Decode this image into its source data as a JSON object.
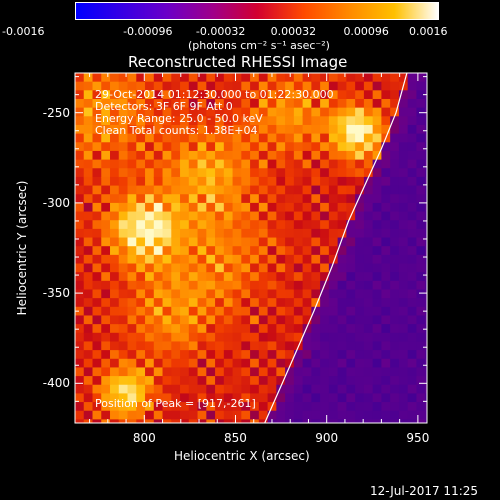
{
  "chart_data": {
    "type": "heatmap",
    "title": "Reconstructed RHESSI Image",
    "xlabel": "Heliocentric X (arcsec)",
    "ylabel": "Heliocentric Y (arcsec)",
    "xlim": [
      762,
      955
    ],
    "ylim": [
      -422,
      -228
    ],
    "xticks": [
      800,
      850,
      900,
      950
    ],
    "yticks": [
      -250,
      -300,
      -350,
      -400
    ],
    "x_tick_labels": [
      "800",
      "850",
      "900",
      "950"
    ],
    "y_tick_labels": [
      "-250",
      "-300",
      "-350",
      "-400"
    ],
    "colorbar": {
      "range": [
        -0.0016,
        0.0016
      ],
      "ticks": [
        -0.0016,
        -0.00096,
        -0.00032,
        0.00032,
        0.00096,
        0.0016
      ],
      "tick_labels": [
        "-0.0016",
        "-0.00096",
        "-0.00032",
        "0.00032",
        "0.00096",
        "0.0016"
      ],
      "label": "(photons cm⁻² s⁻¹ asec⁻²)",
      "colors": [
        "#0000ff",
        "#6a00c8",
        "#c0003a",
        "#ff5000",
        "#ffb000",
        "#ffffff"
      ]
    },
    "annotations": [
      "29-Oct-2014 01:12:30.000 to 01:22:30.000",
      "Detectors: 3F 6F 9F  Att 0",
      "Energy Range: 25.0 - 50.0 keV",
      "Clean    Total counts: 1.38E+04",
      "Position of Peak = [917,-261]"
    ],
    "peak": {
      "x": 917,
      "y": -261
    },
    "limb_curve": {
      "x": [
        866,
        880,
        893,
        903,
        912,
        921,
        930,
        938,
        944
      ],
      "y": [
        -422,
        -390,
        -360,
        -335,
        -310,
        -290,
        -270,
        -250,
        -228
      ]
    }
  },
  "timestamp": "12-Jul-2017 11:25"
}
